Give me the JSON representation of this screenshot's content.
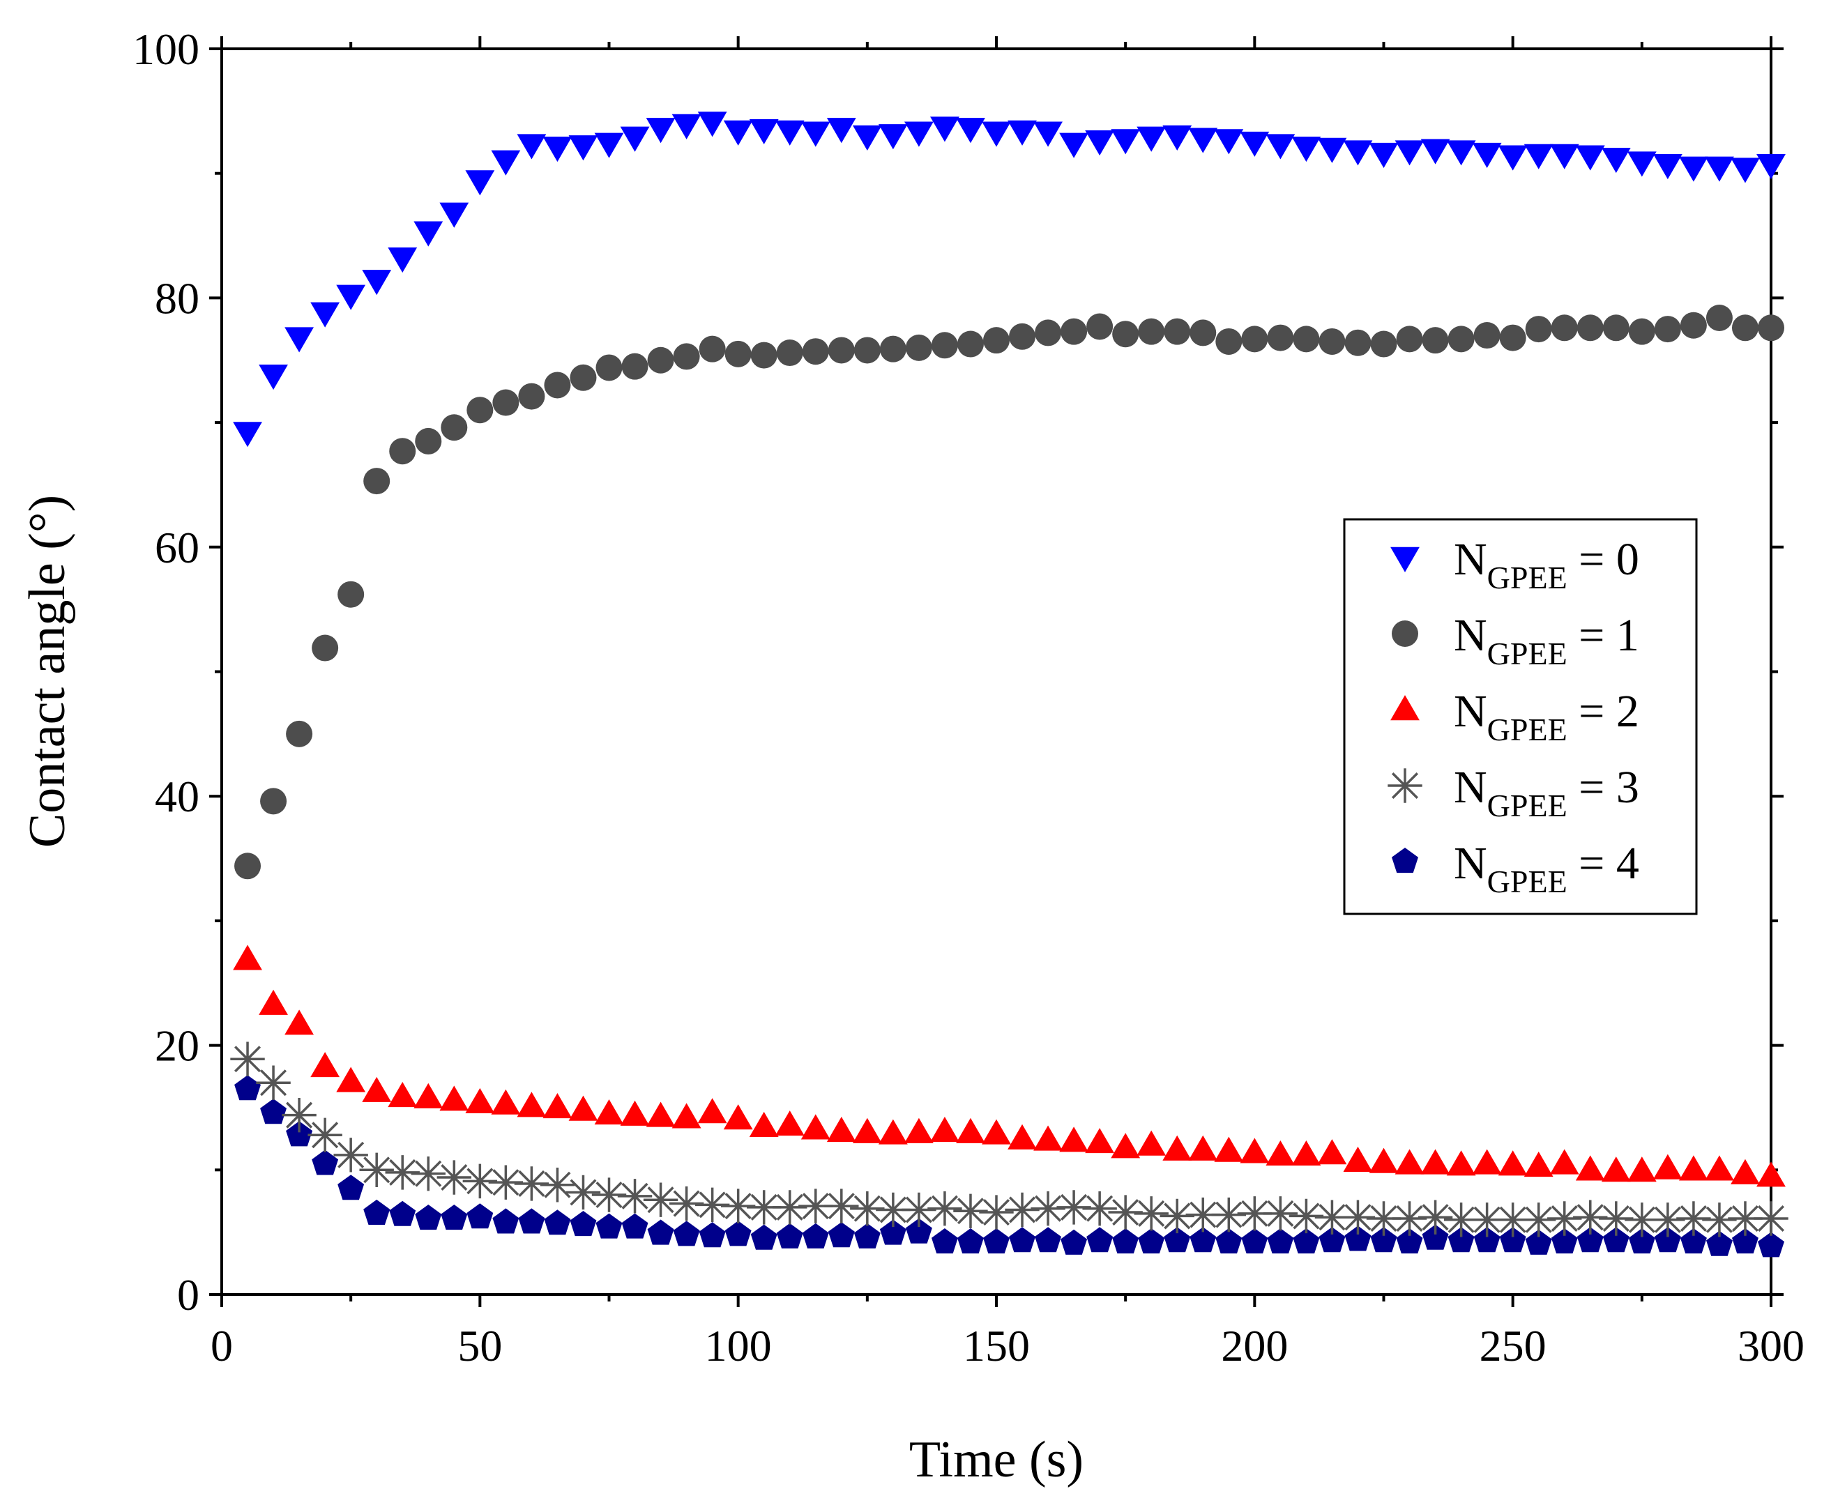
{
  "chart_data": {
    "type": "scatter",
    "xlabel": "Time (s)",
    "ylabel": "Contact angle (°)",
    "xlim": [
      0,
      300
    ],
    "ylim": [
      0,
      100
    ],
    "x_ticks": [
      0,
      50,
      100,
      150,
      200,
      250,
      300
    ],
    "y_ticks": [
      0,
      20,
      40,
      60,
      80,
      100
    ],
    "x_tick_labels": [
      "0",
      "50",
      "100",
      "150",
      "200",
      "250",
      "300"
    ],
    "y_tick_labels": [
      "0",
      "20",
      "40",
      "60",
      "80",
      "100"
    ],
    "grid": false,
    "legend_position": "center-right",
    "x": [
      5,
      10,
      15,
      20,
      25,
      30,
      35,
      40,
      45,
      50,
      55,
      60,
      65,
      70,
      75,
      80,
      85,
      90,
      95,
      100,
      105,
      110,
      115,
      120,
      125,
      130,
      135,
      140,
      145,
      150,
      155,
      160,
      165,
      170,
      175,
      180,
      185,
      190,
      195,
      200,
      205,
      210,
      215,
      220,
      225,
      230,
      235,
      240,
      245,
      250,
      255,
      260,
      265,
      270,
      275,
      280,
      285,
      290,
      295,
      300
    ],
    "series": [
      {
        "name": "NGPEE = 0",
        "legend_main": "N",
        "legend_sub": "GPEE",
        "legend_tail": " = 0",
        "marker": "triangle-down",
        "color": "#0000ff",
        "values": [
          69.2,
          73.8,
          76.8,
          78.8,
          80.2,
          81.4,
          83.2,
          85.3,
          86.8,
          89.4,
          91.0,
          92.3,
          92.1,
          92.2,
          92.4,
          92.9,
          93.6,
          93.9,
          94.1,
          93.4,
          93.5,
          93.4,
          93.3,
          93.6,
          93.0,
          93.1,
          93.3,
          93.7,
          93.6,
          93.3,
          93.4,
          93.3,
          92.4,
          92.6,
          92.7,
          92.9,
          93.0,
          92.8,
          92.7,
          92.5,
          92.3,
          92.1,
          92.0,
          91.8,
          91.6,
          91.8,
          91.9,
          91.8,
          91.6,
          91.4,
          91.5,
          91.5,
          91.4,
          91.2,
          90.9,
          90.7,
          90.5,
          90.5,
          90.4,
          90.7
        ]
      },
      {
        "name": "NGPEE = 1",
        "legend_main": "N",
        "legend_sub": "GPEE",
        "legend_tail": " = 1",
        "marker": "circle",
        "color": "#4d4d4d",
        "values": [
          34.4,
          39.6,
          45.0,
          51.9,
          56.2,
          65.3,
          67.7,
          68.5,
          69.6,
          71.0,
          71.6,
          72.1,
          73.0,
          73.6,
          74.4,
          74.5,
          75.0,
          75.3,
          75.9,
          75.5,
          75.4,
          75.6,
          75.7,
          75.8,
          75.8,
          75.9,
          76.0,
          76.2,
          76.3,
          76.6,
          76.9,
          77.2,
          77.3,
          77.7,
          77.1,
          77.3,
          77.3,
          77.2,
          76.5,
          76.7,
          76.8,
          76.7,
          76.5,
          76.4,
          76.3,
          76.7,
          76.6,
          76.7,
          77.0,
          76.8,
          77.5,
          77.6,
          77.6,
          77.6,
          77.3,
          77.5,
          77.8,
          78.4,
          77.6,
          77.6
        ]
      },
      {
        "name": "NGPEE = 2",
        "legend_main": "N",
        "legend_sub": "GPEE",
        "legend_tail": " = 2",
        "marker": "triangle-up",
        "color": "#ff0000",
        "values": [
          26.9,
          23.3,
          21.7,
          18.3,
          17.1,
          16.3,
          15.9,
          15.8,
          15.6,
          15.4,
          15.3,
          15.1,
          15.0,
          14.8,
          14.5,
          14.4,
          14.3,
          14.2,
          14.6,
          14.1,
          13.5,
          13.6,
          13.3,
          13.1,
          13.0,
          12.9,
          13.0,
          13.1,
          13.0,
          12.9,
          12.5,
          12.4,
          12.3,
          12.2,
          11.8,
          12.0,
          11.6,
          11.6,
          11.5,
          11.4,
          11.2,
          11.2,
          11.3,
          10.7,
          10.6,
          10.5,
          10.5,
          10.4,
          10.5,
          10.4,
          10.3,
          10.5,
          10.0,
          9.9,
          9.9,
          10.1,
          10.0,
          10.0,
          9.7,
          9.5
        ]
      },
      {
        "name": "NGPEE = 3",
        "legend_main": "N",
        "legend_sub": "GPEE",
        "legend_tail": " = 3",
        "marker": "asterisk",
        "color": "#555555",
        "values": [
          18.9,
          17.0,
          14.4,
          12.8,
          11.2,
          10.0,
          9.8,
          9.7,
          9.4,
          9.1,
          9.0,
          8.9,
          8.8,
          8.2,
          8.0,
          7.9,
          7.6,
          7.3,
          7.2,
          7.1,
          7.0,
          7.0,
          7.1,
          7.1,
          6.9,
          6.8,
          6.8,
          6.9,
          6.7,
          6.6,
          6.8,
          6.9,
          7.0,
          6.9,
          6.6,
          6.5,
          6.3,
          6.4,
          6.4,
          6.5,
          6.5,
          6.3,
          6.2,
          6.2,
          6.1,
          6.1,
          6.2,
          6.0,
          6.0,
          6.0,
          6.0,
          6.1,
          6.2,
          6.1,
          6.0,
          6.0,
          6.1,
          6.0,
          6.1,
          6.1
        ]
      },
      {
        "name": "NGPEE = 4",
        "legend_main": "N",
        "legend_sub": "GPEE",
        "legend_tail": " = 4",
        "marker": "pentagon",
        "color": "#00008b",
        "values": [
          16.5,
          14.6,
          12.8,
          10.5,
          8.5,
          6.5,
          6.4,
          6.1,
          6.1,
          6.2,
          5.8,
          5.8,
          5.7,
          5.6,
          5.4,
          5.4,
          4.9,
          4.8,
          4.7,
          4.8,
          4.5,
          4.6,
          4.6,
          4.7,
          4.6,
          4.9,
          5.0,
          4.2,
          4.2,
          4.2,
          4.3,
          4.3,
          4.1,
          4.3,
          4.2,
          4.2,
          4.3,
          4.3,
          4.2,
          4.2,
          4.2,
          4.2,
          4.3,
          4.4,
          4.3,
          4.2,
          4.5,
          4.3,
          4.3,
          4.3,
          4.1,
          4.2,
          4.3,
          4.3,
          4.2,
          4.3,
          4.2,
          4.0,
          4.2,
          3.9
        ]
      }
    ]
  }
}
